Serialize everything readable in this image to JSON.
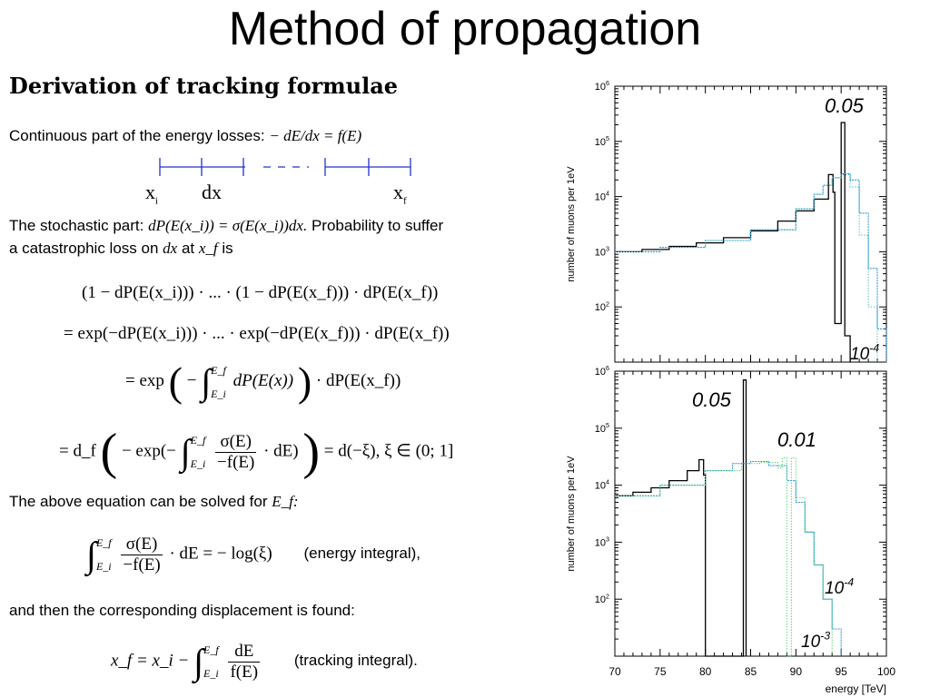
{
  "slide": {
    "title": "Method of propagation",
    "heading": "Derivation of tracking formulae",
    "continuous_label": "Continuous part of the energy losses:",
    "continuous_formula": "− dE/dx = f(E)",
    "ruler": {
      "x_i": "x",
      "x_i_sub": "i",
      "dx": "dx",
      "x_f": "x",
      "x_f_sub": "f"
    },
    "stochastic_line1_a": "The stochastic part:",
    "stochastic_line1_formula": "dP(E(x_i)) = σ(E(x_i))dx.",
    "stochastic_line1_b": "Probability to suffer",
    "stochastic_line2_a": "a catastrophic loss on",
    "stochastic_line2_dx": "dx",
    "stochastic_line2_b": "at",
    "stochastic_line2_xf": "x_f",
    "stochastic_line2_c": "is",
    "eq1": "(1 − dP(E(x_i))) · ... · (1 − dP(E(x_f))) · dP(E(x_f))",
    "eq2": "= exp(−dP(E(x_i))) · ... · exp(−dP(E(x_f))) · dP(E(x_f))",
    "eq3_lhs": "= exp",
    "eq3_integrand": "dP(E(x))",
    "eq3_rhs": "· dP(E(x_f))",
    "eq4_lhs": "= d_f",
    "eq4_inner": "− exp(−",
    "eq4_frac_num": "σ(E)",
    "eq4_frac_den": "−f(E)",
    "eq4_tail": "· dE)",
    "eq4_rhs": "= d(−ξ),    ξ ∈ (0; 1]",
    "solved_text": "The above equation can be solved for",
    "solved_var": "E_f:",
    "energy_frac_num": "σ(E)",
    "energy_frac_den": "−f(E)",
    "energy_rhs": "· dE = − log(ξ)",
    "energy_label": "(energy integral),",
    "displacement_text": "and then the corresponding displacement is found:",
    "track_lhs": "x_f = x_i −",
    "track_frac_num": "dE",
    "track_frac_den": "f(E)",
    "track_label": "(tracking integral).",
    "int_upper": "E_f",
    "int_lower": "E_i"
  },
  "chart_data": [
    {
      "type": "line",
      "panel": "top",
      "ylabel": "number of muons per 1eV",
      "yscale": "log",
      "ylim": [
        10,
        1000000
      ],
      "xlim": [
        70,
        100
      ],
      "y_tick_labels": [
        "10^2",
        "10^3",
        "10^4",
        "10^5",
        "10^6"
      ],
      "annotations": [
        {
          "text": "0.05"
        },
        {
          "text": "10^-4"
        }
      ],
      "series": [
        {
          "color": "#000000",
          "x": [
            70,
            73,
            76,
            79,
            82,
            85,
            88,
            90,
            92,
            93.6,
            94.1,
            94.3,
            94.9,
            95.0,
            95.3,
            95.4,
            96
          ],
          "y": [
            1000,
            1100,
            1250,
            1450,
            1800,
            2400,
            3600,
            5500,
            9000,
            25000,
            12000,
            50,
            50,
            220000,
            220000,
            30,
            10
          ]
        },
        {
          "color": "#3399dd",
          "x": [
            70,
            75,
            80,
            85,
            90,
            92,
            93,
            94,
            95,
            96,
            97,
            98,
            99,
            100
          ],
          "y": [
            1000,
            1200,
            1600,
            2500,
            6000,
            11000,
            16000,
            22000,
            26000,
            20000,
            5000,
            500,
            40,
            10
          ]
        },
        {
          "color": "#22aaaa",
          "x": [
            70,
            75,
            80,
            85,
            90,
            92,
            93,
            94,
            95,
            96,
            97,
            98,
            99
          ],
          "y": [
            1000,
            1200,
            1600,
            2500,
            6000,
            11000,
            16000,
            22000,
            25000,
            15000,
            2000,
            100,
            10
          ]
        }
      ]
    },
    {
      "type": "line",
      "panel": "bottom",
      "ylabel": "number of muons per 1eV",
      "xlabel": "energy [TeV]",
      "yscale": "log",
      "ylim": [
        10,
        1000000
      ],
      "xlim": [
        70,
        100
      ],
      "x_tick_labels": [
        "70",
        "75",
        "80",
        "85",
        "90",
        "95",
        "100"
      ],
      "y_tick_labels": [
        "10^2",
        "10^3",
        "10^4",
        "10^5",
        "10^6"
      ],
      "annotations": [
        {
          "text": "0.05"
        },
        {
          "text": "0.01"
        },
        {
          "text": "10^-4"
        },
        {
          "text": "10^-3"
        }
      ],
      "series": [
        {
          "color": "#000000",
          "x": [
            70,
            72,
            74,
            76,
            78,
            79.3,
            79.8,
            80.0,
            80.1,
            80.3,
            84.2,
            84.2,
            84.5,
            84.5
          ],
          "y": [
            6500,
            7500,
            9000,
            12000,
            18000,
            28000,
            15000,
            10,
            10,
            10,
            10,
            700000,
            700000,
            10
          ]
        },
        {
          "color": "#3399dd",
          "x": [
            70,
            75,
            80,
            83,
            85,
            87,
            89,
            90,
            91,
            92,
            93,
            94,
            95
          ],
          "y": [
            6500,
            10000,
            18000,
            24000,
            26000,
            22000,
            12000,
            5000,
            1500,
            400,
            100,
            30,
            10
          ]
        },
        {
          "color": "#22cc44",
          "x": [
            70,
            75,
            80,
            84,
            86,
            88,
            88.5,
            89,
            89.5,
            90,
            91,
            92,
            93,
            94
          ],
          "y": [
            6500,
            10000,
            18000,
            24000,
            25000,
            20000,
            30000,
            10,
            30000,
            6000,
            1500,
            400,
            100,
            10
          ]
        }
      ]
    }
  ]
}
